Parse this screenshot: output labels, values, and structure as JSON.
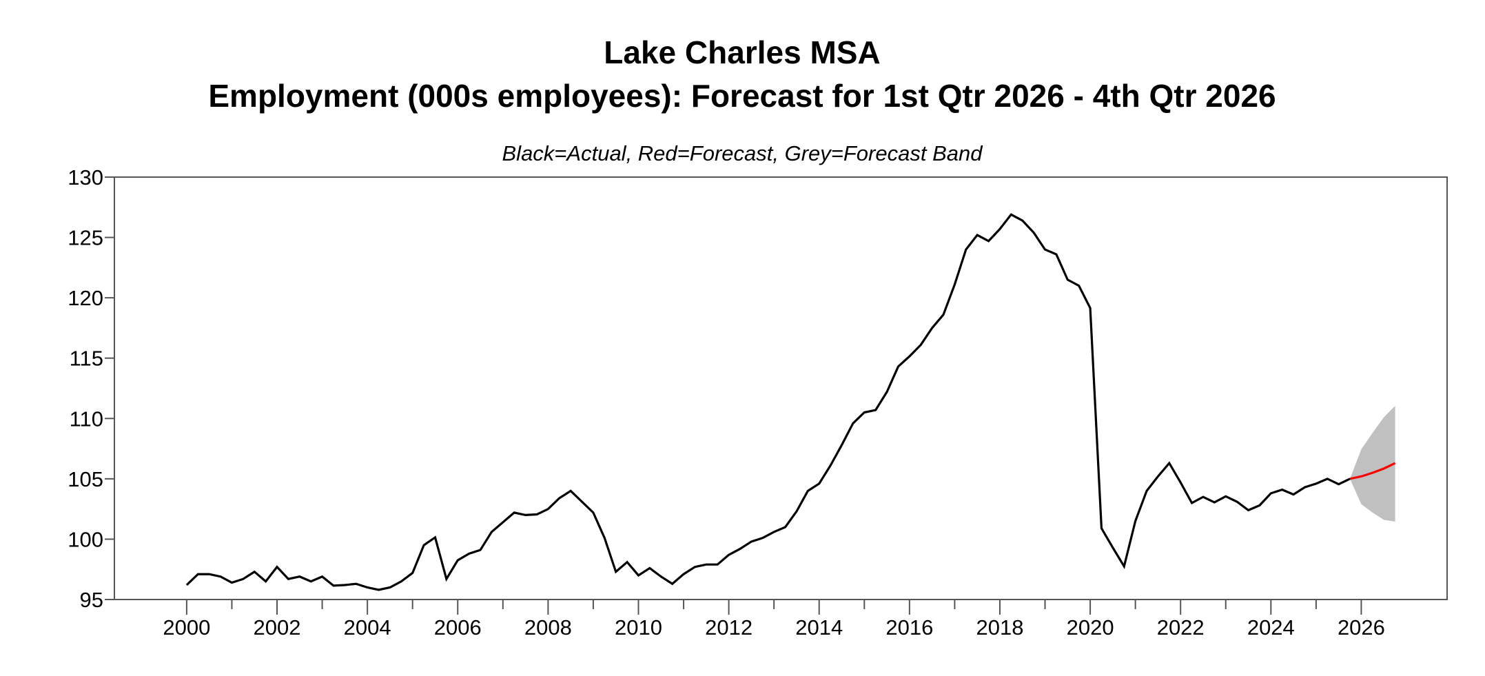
{
  "chart_data": {
    "type": "line",
    "title": "Lake Charles MSA",
    "title_line2": "Employment (000s employees): Forecast for 1st Qtr 2026 - 4th Qtr 2026",
    "subtitle": "Black=Actual, Red=Forecast, Grey=Forecast Band",
    "xlabel": "",
    "ylabel": "",
    "frequency": "quarterly",
    "xlim": [
      1998.4,
      2027.9
    ],
    "ylim": [
      95,
      130
    ],
    "yticks": [
      95,
      100,
      105,
      110,
      115,
      120,
      125,
      130
    ],
    "xticks_labeled": [
      2000,
      2002,
      2004,
      2006,
      2008,
      2010,
      2012,
      2014,
      2016,
      2018,
      2020,
      2022,
      2024,
      2026
    ],
    "xticks_minor": [
      2001,
      2003,
      2005,
      2007,
      2009,
      2011,
      2013,
      2015,
      2017,
      2019,
      2021,
      2023,
      2025
    ],
    "grid": false,
    "colors": {
      "actual": "#000000",
      "forecast": "#ff0000",
      "band": "#c0c0c0",
      "frame": "#555555"
    },
    "series": [
      {
        "role": "actual",
        "start": "2000 Q1",
        "values": [
          96.2,
          97.1,
          97.1,
          96.9,
          96.4,
          96.7,
          97.3,
          96.5,
          97.7,
          96.7,
          96.9,
          96.5,
          96.9,
          96.15,
          96.2,
          96.3,
          96.0,
          95.8,
          96.0,
          96.5,
          97.2,
          99.5,
          100.15,
          96.7,
          98.25,
          98.8,
          99.1,
          100.6,
          101.4,
          102.2,
          102.0,
          102.05,
          102.5,
          103.4,
          104.0,
          103.1,
          102.2,
          100.1,
          97.3,
          98.1,
          97.0,
          97.6,
          96.9,
          96.3,
          97.1,
          97.7,
          97.9,
          97.9,
          98.7,
          99.2,
          99.8,
          100.1,
          100.6,
          101.0,
          102.3,
          104.0,
          104.6,
          106.1,
          107.8,
          109.6,
          110.5,
          110.7,
          112.2,
          114.3,
          115.15,
          116.1,
          117.5,
          118.6,
          121.1,
          124.0,
          125.2,
          124.7,
          125.7,
          126.9,
          126.4,
          125.4,
          124.0,
          123.6,
          121.5,
          121.0,
          119.15,
          100.9,
          99.3,
          97.75,
          101.5,
          104.0,
          105.2,
          106.3,
          104.7,
          103.0,
          103.5,
          103.05,
          103.55,
          103.1,
          102.4,
          102.8,
          103.8,
          104.1,
          103.7,
          104.3,
          104.6,
          105.0,
          104.55,
          105.0
        ]
      },
      {
        "role": "forecast",
        "start": "2025 Q4",
        "values": [
          105.0,
          105.2,
          105.5,
          105.85,
          106.3
        ]
      }
    ],
    "band": {
      "start": "2025 Q4",
      "upper": [
        105.0,
        107.45,
        108.8,
        110.1,
        111.05
      ],
      "lower": [
        105.0,
        102.9,
        102.2,
        101.6,
        101.45
      ]
    }
  }
}
